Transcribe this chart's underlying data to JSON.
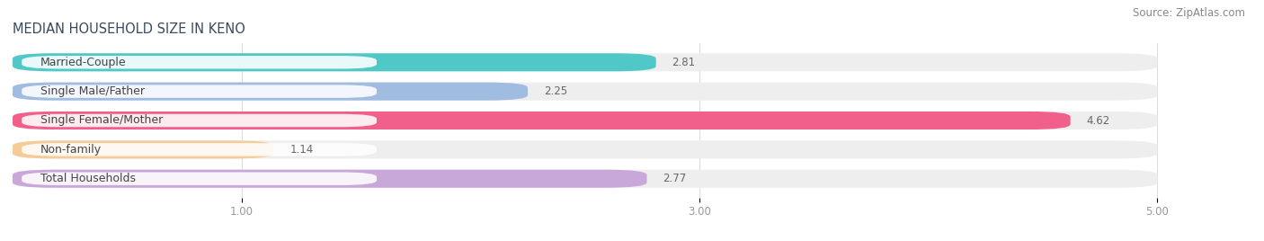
{
  "title": "MEDIAN HOUSEHOLD SIZE IN KENO",
  "source": "Source: ZipAtlas.com",
  "categories": [
    "Married-Couple",
    "Single Male/Father",
    "Single Female/Mother",
    "Non-family",
    "Total Households"
  ],
  "values": [
    2.81,
    2.25,
    4.62,
    1.14,
    2.77
  ],
  "bar_colors": [
    "#50c8c8",
    "#a0bce0",
    "#f0608a",
    "#f5cc98",
    "#c8a8d8"
  ],
  "xlim": [
    0,
    5.3
  ],
  "xmin": 0,
  "xmax": 5.0,
  "xticks": [
    1.0,
    3.0,
    5.0
  ],
  "xtick_labels": [
    "1.00",
    "3.00",
    "5.00"
  ],
  "title_fontsize": 10.5,
  "source_fontsize": 8.5,
  "label_fontsize": 9,
  "value_fontsize": 8.5,
  "background_color": "#ffffff",
  "bar_height": 0.62,
  "label_pill_color": "#ffffff",
  "title_color": "#3a4a5a",
  "source_color": "#888888",
  "tick_color": "#999999",
  "value_color": "#666666",
  "grid_color": "#dddddd",
  "bar_bg_color": "#eeeeee"
}
